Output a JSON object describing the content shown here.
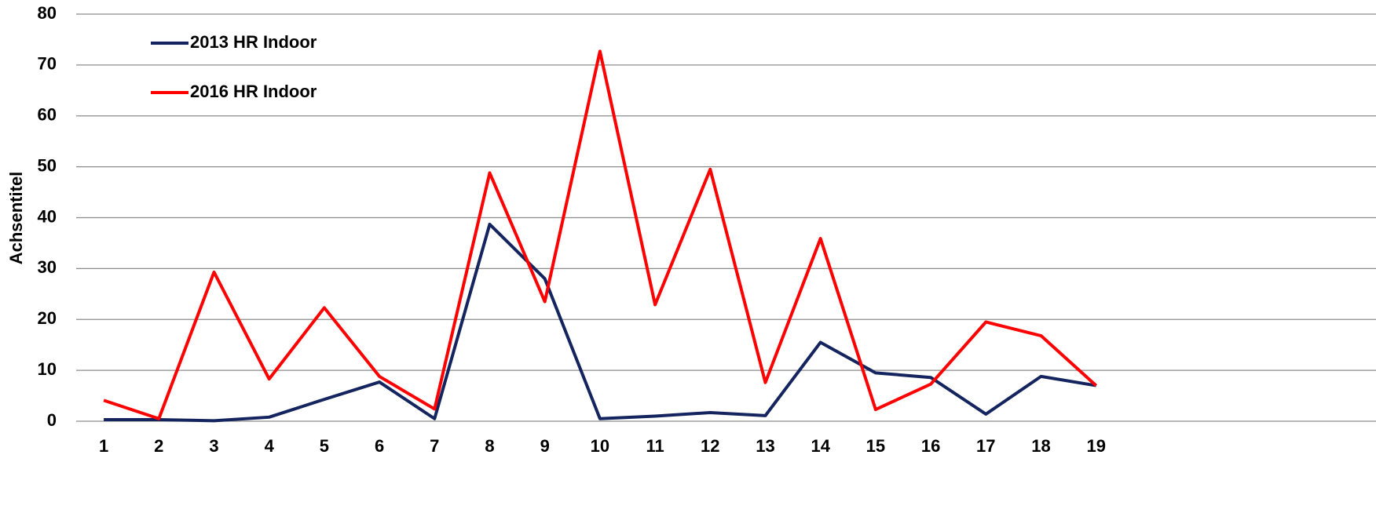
{
  "chart_data": {
    "type": "line",
    "y_label": "Achsentitel",
    "categories": [
      "1",
      "2",
      "3",
      "4",
      "5",
      "6",
      "7",
      "8",
      "9",
      "10",
      "11",
      "12",
      "13",
      "14",
      "15",
      "16",
      "17",
      "18",
      "19"
    ],
    "series": [
      {
        "name": "2013 HR Indoor",
        "color": "#14245e",
        "values": [
          0.3,
          0.3,
          0.1,
          0.8,
          4.3,
          7.7,
          0.5,
          38.7,
          28,
          0.5,
          1,
          1.7,
          1.1,
          15.5,
          9.5,
          8.6,
          1.4,
          8.8,
          7
        ]
      },
      {
        "name": "2016 HR Indoor",
        "color": "#ff0000",
        "values": [
          4.1,
          0.5,
          29.3,
          8.3,
          22.3,
          8.8,
          2.4,
          48.8,
          23.5,
          72.7,
          22.9,
          49.5,
          7.6,
          35.9,
          2.3,
          7.3,
          19.5,
          16.8,
          7
        ]
      }
    ],
    "ylim": [
      0,
      80
    ],
    "yticks": [
      0,
      10,
      20,
      30,
      40,
      50,
      60,
      70,
      80
    ],
    "grid": true,
    "legend": "top-left"
  }
}
